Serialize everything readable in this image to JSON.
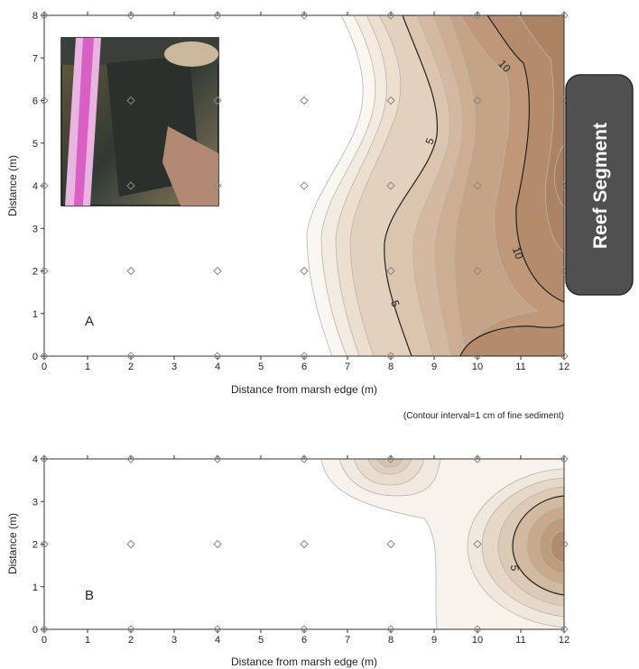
{
  "chart_data": [
    {
      "type": "heatmap",
      "panel_label": "A",
      "xlabel": "Distance from marsh edge (m)",
      "ylabel": "Distance (m)",
      "xlim": [
        0,
        12
      ],
      "ylim": [
        0,
        8
      ],
      "x_ticks": [
        0,
        1,
        2,
        3,
        4,
        5,
        6,
        7,
        8,
        9,
        10,
        11,
        12
      ],
      "y_ticks": [
        0,
        1,
        2,
        3,
        4,
        5,
        6,
        7,
        8
      ],
      "note": "(Contour interval=1 cm of fine sediment)",
      "contour_labels": [
        "5",
        "5",
        "10",
        "10"
      ],
      "sample_points": [
        [
          0,
          0
        ],
        [
          2,
          0
        ],
        [
          4,
          0
        ],
        [
          6,
          0
        ],
        [
          8,
          0
        ],
        [
          10,
          0
        ],
        [
          12,
          0
        ],
        [
          0,
          2
        ],
        [
          2,
          2
        ],
        [
          4,
          2
        ],
        [
          6,
          2
        ],
        [
          8,
          2
        ],
        [
          10,
          2
        ],
        [
          12,
          2
        ],
        [
          0,
          4
        ],
        [
          2,
          4
        ],
        [
          4,
          4
        ],
        [
          6,
          4
        ],
        [
          8,
          4
        ],
        [
          10,
          4
        ],
        [
          12,
          4
        ],
        [
          0,
          6
        ],
        [
          2,
          6
        ],
        [
          4,
          6
        ],
        [
          6,
          6
        ],
        [
          8,
          6
        ],
        [
          10,
          6
        ],
        [
          12,
          6
        ],
        [
          0,
          8
        ],
        [
          2,
          8
        ],
        [
          4,
          8
        ],
        [
          6,
          8
        ],
        [
          8,
          8
        ],
        [
          10,
          8
        ],
        [
          12,
          8
        ]
      ],
      "side_label": "Reef Segment"
    },
    {
      "type": "heatmap",
      "panel_label": "B",
      "xlabel": "Distance from marsh edge (m)",
      "ylabel": "Distance (m)",
      "xlim": [
        0,
        12
      ],
      "ylim": [
        0,
        4
      ],
      "x_ticks": [
        0,
        1,
        2,
        3,
        4,
        5,
        6,
        7,
        8,
        9,
        10,
        11,
        12
      ],
      "y_ticks": [
        0,
        1,
        2,
        3,
        4
      ],
      "contour_labels": [
        "5"
      ],
      "sample_points": [
        [
          0,
          0
        ],
        [
          2,
          0
        ],
        [
          4,
          0
        ],
        [
          6,
          0
        ],
        [
          8,
          0
        ],
        [
          10,
          0
        ],
        [
          12,
          0
        ],
        [
          0,
          2
        ],
        [
          2,
          2
        ],
        [
          4,
          2
        ],
        [
          6,
          2
        ],
        [
          8,
          2
        ],
        [
          10,
          2
        ],
        [
          12,
          2
        ],
        [
          0,
          4
        ],
        [
          2,
          4
        ],
        [
          4,
          4
        ],
        [
          6,
          4
        ],
        [
          8,
          4
        ],
        [
          10,
          4
        ],
        [
          12,
          4
        ]
      ]
    }
  ],
  "colors": {
    "low": "#fbf8f4",
    "high": "#a77d5c",
    "line": "#8a8a8a",
    "major_line": "#222222",
    "reef_box": "#505050"
  }
}
